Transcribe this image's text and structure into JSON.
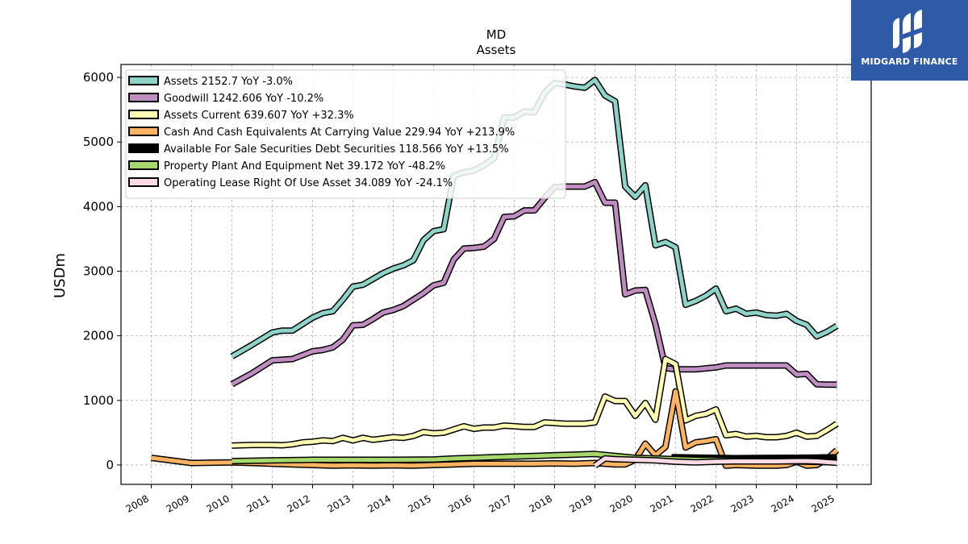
{
  "brand": {
    "name": "MIDGARD FINANCE",
    "bg_color": "#2f5aa8",
    "icon": "midgard-logo-icon"
  },
  "chart_data": {
    "type": "line",
    "title": "MD",
    "subtitle": "Assets",
    "ylabel": "USDm",
    "xlabel": "",
    "ylim": [
      -300,
      6200
    ],
    "xlim": [
      2007.25,
      2025.85
    ],
    "yticks": [
      0,
      1000,
      2000,
      3000,
      4000,
      5000,
      6000
    ],
    "xticks": [
      "2008",
      "2009",
      "2010",
      "2011",
      "2012",
      "2013",
      "2014",
      "2015",
      "2016",
      "2017",
      "2018",
      "2019",
      "2020",
      "2021",
      "2022",
      "2023",
      "2024",
      "2025"
    ],
    "grid": true,
    "legend_position": "top-left",
    "series": [
      {
        "name": "Assets",
        "legend": "Assets  2152.7 YoY -3.0%",
        "color": "#8dd3c7",
        "points": [
          [
            2010.0,
            1680
          ],
          [
            2010.5,
            1860
          ],
          [
            2011.0,
            2050
          ],
          [
            2011.25,
            2080
          ],
          [
            2011.5,
            2080
          ],
          [
            2012.0,
            2280
          ],
          [
            2012.25,
            2350
          ],
          [
            2012.5,
            2380
          ],
          [
            2012.75,
            2560
          ],
          [
            2013.0,
            2760
          ],
          [
            2013.25,
            2790
          ],
          [
            2013.5,
            2880
          ],
          [
            2013.75,
            2970
          ],
          [
            2014.0,
            3040
          ],
          [
            2014.25,
            3090
          ],
          [
            2014.5,
            3170
          ],
          [
            2014.75,
            3480
          ],
          [
            2015.0,
            3620
          ],
          [
            2015.25,
            3650
          ],
          [
            2015.5,
            4480
          ],
          [
            2015.75,
            4530
          ],
          [
            2016.0,
            4560
          ],
          [
            2016.25,
            4640
          ],
          [
            2016.5,
            4750
          ],
          [
            2016.75,
            5380
          ],
          [
            2017.0,
            5380
          ],
          [
            2017.25,
            5470
          ],
          [
            2017.5,
            5460
          ],
          [
            2017.75,
            5760
          ],
          [
            2018.0,
            5910
          ],
          [
            2018.25,
            5890
          ],
          [
            2018.5,
            5860
          ],
          [
            2018.75,
            5840
          ],
          [
            2019.0,
            5960
          ],
          [
            2019.25,
            5720
          ],
          [
            2019.5,
            5630
          ],
          [
            2019.75,
            4310
          ],
          [
            2020.0,
            4150
          ],
          [
            2020.25,
            4330
          ],
          [
            2020.5,
            3400
          ],
          [
            2020.75,
            3450
          ],
          [
            2021.0,
            3370
          ],
          [
            2021.25,
            2480
          ],
          [
            2021.5,
            2540
          ],
          [
            2021.75,
            2620
          ],
          [
            2022.0,
            2730
          ],
          [
            2022.25,
            2380
          ],
          [
            2022.5,
            2420
          ],
          [
            2022.75,
            2340
          ],
          [
            2023.0,
            2360
          ],
          [
            2023.25,
            2320
          ],
          [
            2023.5,
            2310
          ],
          [
            2023.75,
            2340
          ],
          [
            2024.0,
            2230
          ],
          [
            2024.25,
            2170
          ],
          [
            2024.5,
            1990
          ],
          [
            2024.75,
            2060
          ],
          [
            2025.0,
            2153
          ]
        ]
      },
      {
        "name": "Goodwill",
        "legend": "Goodwill  1242.606 YoY -10.2%",
        "color": "#c08dc0",
        "points": [
          [
            2010.0,
            1250
          ],
          [
            2010.5,
            1420
          ],
          [
            2011.0,
            1620
          ],
          [
            2011.5,
            1640
          ],
          [
            2012.0,
            1760
          ],
          [
            2012.25,
            1780
          ],
          [
            2012.5,
            1820
          ],
          [
            2012.75,
            1940
          ],
          [
            2013.0,
            2160
          ],
          [
            2013.25,
            2170
          ],
          [
            2013.5,
            2260
          ],
          [
            2013.75,
            2360
          ],
          [
            2014.0,
            2400
          ],
          [
            2014.25,
            2460
          ],
          [
            2014.5,
            2560
          ],
          [
            2014.75,
            2660
          ],
          [
            2015.0,
            2780
          ],
          [
            2015.25,
            2820
          ],
          [
            2015.5,
            3180
          ],
          [
            2015.75,
            3350
          ],
          [
            2016.0,
            3360
          ],
          [
            2016.25,
            3380
          ],
          [
            2016.5,
            3500
          ],
          [
            2016.75,
            3840
          ],
          [
            2017.0,
            3850
          ],
          [
            2017.25,
            3940
          ],
          [
            2017.5,
            3940
          ],
          [
            2017.75,
            4130
          ],
          [
            2018.0,
            4300
          ],
          [
            2018.25,
            4310
          ],
          [
            2018.5,
            4310
          ],
          [
            2018.75,
            4310
          ],
          [
            2019.0,
            4380
          ],
          [
            2019.25,
            4060
          ],
          [
            2019.5,
            4060
          ],
          [
            2019.75,
            2640
          ],
          [
            2020.0,
            2700
          ],
          [
            2020.25,
            2710
          ],
          [
            2020.5,
            2180
          ],
          [
            2020.75,
            1500
          ],
          [
            2021.0,
            1480
          ],
          [
            2021.5,
            1480
          ],
          [
            2022.0,
            1510
          ],
          [
            2022.25,
            1540
          ],
          [
            2022.5,
            1540
          ],
          [
            2023.0,
            1540
          ],
          [
            2023.5,
            1540
          ],
          [
            2023.75,
            1540
          ],
          [
            2024.0,
            1400
          ],
          [
            2024.25,
            1410
          ],
          [
            2024.5,
            1250
          ],
          [
            2024.75,
            1245
          ],
          [
            2025.0,
            1243
          ]
        ]
      },
      {
        "name": "Assets Current",
        "legend": "Assets Current  639.607 YoY +32.3%",
        "color": "#ffffb3",
        "points": [
          [
            2010.0,
            300
          ],
          [
            2010.5,
            310
          ],
          [
            2011.0,
            310
          ],
          [
            2011.25,
            305
          ],
          [
            2011.5,
            320
          ],
          [
            2011.75,
            350
          ],
          [
            2012.0,
            360
          ],
          [
            2012.25,
            380
          ],
          [
            2012.5,
            370
          ],
          [
            2012.75,
            420
          ],
          [
            2013.0,
            380
          ],
          [
            2013.25,
            420
          ],
          [
            2013.5,
            390
          ],
          [
            2013.75,
            410
          ],
          [
            2014.0,
            430
          ],
          [
            2014.25,
            420
          ],
          [
            2014.5,
            450
          ],
          [
            2014.75,
            510
          ],
          [
            2015.0,
            490
          ],
          [
            2015.25,
            500
          ],
          [
            2015.5,
            550
          ],
          [
            2015.75,
            600
          ],
          [
            2016.0,
            560
          ],
          [
            2016.25,
            580
          ],
          [
            2016.5,
            580
          ],
          [
            2016.75,
            610
          ],
          [
            2017.0,
            600
          ],
          [
            2017.25,
            590
          ],
          [
            2017.5,
            590
          ],
          [
            2017.75,
            660
          ],
          [
            2018.0,
            650
          ],
          [
            2018.25,
            640
          ],
          [
            2018.5,
            640
          ],
          [
            2018.75,
            640
          ],
          [
            2019.0,
            660
          ],
          [
            2019.25,
            1060
          ],
          [
            2019.5,
            990
          ],
          [
            2019.75,
            990
          ],
          [
            2020.0,
            760
          ],
          [
            2020.25,
            960
          ],
          [
            2020.5,
            700
          ],
          [
            2020.75,
            1640
          ],
          [
            2021.0,
            1560
          ],
          [
            2021.25,
            690
          ],
          [
            2021.5,
            760
          ],
          [
            2021.75,
            790
          ],
          [
            2022.0,
            860
          ],
          [
            2022.25,
            460
          ],
          [
            2022.5,
            480
          ],
          [
            2022.75,
            440
          ],
          [
            2023.0,
            450
          ],
          [
            2023.25,
            430
          ],
          [
            2023.5,
            430
          ],
          [
            2023.75,
            450
          ],
          [
            2024.0,
            500
          ],
          [
            2024.25,
            440
          ],
          [
            2024.5,
            450
          ],
          [
            2024.75,
            540
          ],
          [
            2025.0,
            640
          ]
        ]
      },
      {
        "name": "Cash And Cash Equivalents At Carrying Value",
        "legend": "Cash And Cash Equivalents At Carrying Value  229.94 YoY +213.9%",
        "color": "#fdb462",
        "points": [
          [
            2008.0,
            110
          ],
          [
            2009.0,
            30
          ],
          [
            2010.0,
            40
          ],
          [
            2010.5,
            30
          ],
          [
            2011.0,
            20
          ],
          [
            2011.5,
            10
          ],
          [
            2012.0,
            0
          ],
          [
            2012.5,
            -10
          ],
          [
            2013.0,
            -5
          ],
          [
            2013.5,
            -10
          ],
          [
            2014.0,
            -5
          ],
          [
            2014.5,
            -10
          ],
          [
            2015.0,
            0
          ],
          [
            2015.5,
            10
          ],
          [
            2016.0,
            20
          ],
          [
            2016.5,
            20
          ],
          [
            2017.0,
            20
          ],
          [
            2017.5,
            20
          ],
          [
            2018.0,
            25
          ],
          [
            2018.5,
            20
          ],
          [
            2019.0,
            30
          ],
          [
            2019.5,
            10
          ],
          [
            2019.75,
            10
          ],
          [
            2020.0,
            80
          ],
          [
            2020.25,
            330
          ],
          [
            2020.5,
            150
          ],
          [
            2020.75,
            280
          ],
          [
            2021.0,
            1140
          ],
          [
            2021.25,
            270
          ],
          [
            2021.5,
            350
          ],
          [
            2021.75,
            370
          ],
          [
            2022.0,
            400
          ],
          [
            2022.25,
            -10
          ],
          [
            2022.5,
            0
          ],
          [
            2023.0,
            -10
          ],
          [
            2023.5,
            -10
          ],
          [
            2023.75,
            0
          ],
          [
            2024.0,
            50
          ],
          [
            2024.25,
            -10
          ],
          [
            2024.5,
            0
          ],
          [
            2024.75,
            90
          ],
          [
            2025.0,
            230
          ]
        ]
      },
      {
        "name": "Available For Sale Securities Debt Securities",
        "legend": "Available For Sale Securities Debt Securities  118.566 YoY +13.5%",
        "color": "#000000",
        "points": [
          [
            2020.9,
            120
          ],
          [
            2021.5,
            115
          ],
          [
            2022.0,
            110
          ],
          [
            2022.5,
            105
          ],
          [
            2023.0,
            108
          ],
          [
            2023.5,
            110
          ],
          [
            2024.0,
            112
          ],
          [
            2024.5,
            115
          ],
          [
            2025.0,
            119
          ]
        ]
      },
      {
        "name": "Property Plant And Equipment Net",
        "legend": "Property Plant And Equipment Net  39.172 YoY -48.2%",
        "color": "#a6d86e",
        "points": [
          [
            2010.0,
            60
          ],
          [
            2011.0,
            70
          ],
          [
            2012.0,
            80
          ],
          [
            2013.0,
            80
          ],
          [
            2014.0,
            80
          ],
          [
            2015.0,
            85
          ],
          [
            2015.5,
            100
          ],
          [
            2016.0,
            110
          ],
          [
            2016.5,
            120
          ],
          [
            2017.0,
            130
          ],
          [
            2017.5,
            140
          ],
          [
            2018.0,
            150
          ],
          [
            2018.5,
            160
          ],
          [
            2019.0,
            170
          ],
          [
            2019.5,
            140
          ],
          [
            2020.0,
            110
          ],
          [
            2020.5,
            100
          ],
          [
            2021.0,
            90
          ],
          [
            2021.5,
            80
          ],
          [
            2022.0,
            75
          ],
          [
            2022.5,
            70
          ],
          [
            2023.0,
            65
          ],
          [
            2023.5,
            60
          ],
          [
            2024.0,
            55
          ],
          [
            2024.5,
            48
          ],
          [
            2025.0,
            39
          ]
        ]
      },
      {
        "name": "Operating Lease Right Of Use Asset",
        "legend": "Operating Lease Right Of Use Asset  34.089 YoY -24.1%",
        "color": "#fcdbe6",
        "points": [
          [
            2019.0,
            -10
          ],
          [
            2019.25,
            100
          ],
          [
            2019.5,
            90
          ],
          [
            2020.0,
            80
          ],
          [
            2020.5,
            70
          ],
          [
            2021.0,
            50
          ],
          [
            2021.5,
            40
          ],
          [
            2022.0,
            50
          ],
          [
            2022.5,
            55
          ],
          [
            2023.0,
            55
          ],
          [
            2023.5,
            55
          ],
          [
            2024.0,
            60
          ],
          [
            2024.25,
            60
          ],
          [
            2024.5,
            55
          ],
          [
            2025.0,
            34
          ]
        ]
      }
    ]
  }
}
